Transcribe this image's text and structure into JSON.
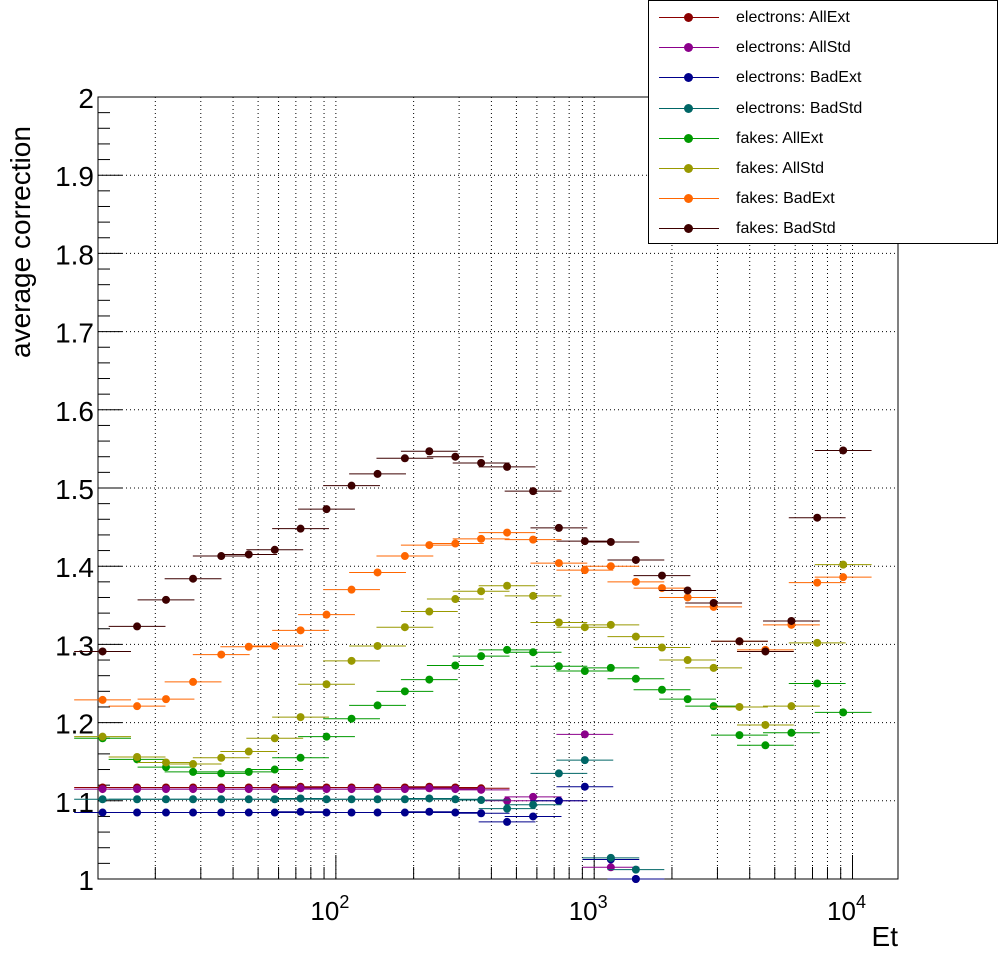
{
  "chart_data": {
    "type": "scatter",
    "xlabel": "Et",
    "ylabel": "average correction",
    "xscale": "log",
    "xlim": [
      12,
      15000
    ],
    "ylim": [
      1.0,
      2.0
    ],
    "grid": true,
    "legend_position": "top-right",
    "x_tick_labels": [
      "10^2",
      "10^3",
      "10^4"
    ],
    "y_tick_labels": [
      "1",
      "1.1",
      "1.2",
      "1.3",
      "1.4",
      "1.5",
      "1.6",
      "1.7",
      "1.8",
      "1.9",
      "2"
    ],
    "series": [
      {
        "name": "electrons: AllExt",
        "color": "#8b0000",
        "points": [
          [
            12.5,
            1.117
          ],
          [
            17,
            1.117
          ],
          [
            22,
            1.117
          ],
          [
            28,
            1.117
          ],
          [
            36,
            1.117
          ],
          [
            46,
            1.117
          ],
          [
            58,
            1.117
          ],
          [
            73,
            1.118
          ],
          [
            92,
            1.117
          ],
          [
            115,
            1.117
          ],
          [
            145,
            1.117
          ],
          [
            185,
            1.117
          ],
          [
            230,
            1.118
          ],
          [
            290,
            1.117
          ],
          [
            365,
            1.116
          ]
        ]
      },
      {
        "name": "electrons: AllStd",
        "color": "#8b008b",
        "points": [
          [
            12.5,
            1.115
          ],
          [
            17,
            1.115
          ],
          [
            22,
            1.115
          ],
          [
            28,
            1.115
          ],
          [
            36,
            1.115
          ],
          [
            46,
            1.115
          ],
          [
            58,
            1.115
          ],
          [
            73,
            1.116
          ],
          [
            92,
            1.115
          ],
          [
            115,
            1.115
          ],
          [
            145,
            1.115
          ],
          [
            185,
            1.115
          ],
          [
            230,
            1.116
          ],
          [
            290,
            1.115
          ],
          [
            365,
            1.114
          ],
          [
            460,
            1.1
          ],
          [
            580,
            1.105
          ],
          [
            730,
            1.1
          ],
          [
            920,
            1.185
          ],
          [
            1160,
            1.015
          ],
          [
            1450,
            1.0
          ]
        ]
      },
      {
        "name": "electrons: BadExt",
        "color": "#00008b",
        "points": [
          [
            12.5,
            1.085
          ],
          [
            17,
            1.085
          ],
          [
            22,
            1.085
          ],
          [
            28,
            1.085
          ],
          [
            36,
            1.085
          ],
          [
            46,
            1.085
          ],
          [
            58,
            1.085
          ],
          [
            73,
            1.086
          ],
          [
            92,
            1.085
          ],
          [
            115,
            1.085
          ],
          [
            145,
            1.085
          ],
          [
            185,
            1.085
          ],
          [
            230,
            1.086
          ],
          [
            290,
            1.085
          ],
          [
            365,
            1.084
          ],
          [
            460,
            1.073
          ],
          [
            580,
            1.08
          ],
          [
            730,
            1.1
          ],
          [
            920,
            1.118
          ],
          [
            1160,
            1.025
          ],
          [
            1450,
            1.0
          ]
        ]
      },
      {
        "name": "electrons: BadStd",
        "color": "#006666",
        "points": [
          [
            12.5,
            1.102
          ],
          [
            17,
            1.102
          ],
          [
            22,
            1.102
          ],
          [
            28,
            1.102
          ],
          [
            36,
            1.102
          ],
          [
            46,
            1.102
          ],
          [
            58,
            1.102
          ],
          [
            73,
            1.103
          ],
          [
            92,
            1.102
          ],
          [
            115,
            1.102
          ],
          [
            145,
            1.102
          ],
          [
            185,
            1.102
          ],
          [
            230,
            1.103
          ],
          [
            290,
            1.102
          ],
          [
            365,
            1.101
          ],
          [
            460,
            1.09
          ],
          [
            580,
            1.095
          ],
          [
            730,
            1.135
          ],
          [
            920,
            1.152
          ],
          [
            1160,
            1.027
          ],
          [
            1450,
            1.012
          ]
        ]
      },
      {
        "name": "fakes: AllExt",
        "color": "#009900",
        "points": [
          [
            12.5,
            1.18
          ],
          [
            17,
            1.153
          ],
          [
            22,
            1.143
          ],
          [
            28,
            1.137
          ],
          [
            36,
            1.135
          ],
          [
            46,
            1.137
          ],
          [
            58,
            1.14
          ],
          [
            73,
            1.155
          ],
          [
            92,
            1.182
          ],
          [
            115,
            1.205
          ],
          [
            145,
            1.222
          ],
          [
            185,
            1.24
          ],
          [
            230,
            1.255
          ],
          [
            290,
            1.273
          ],
          [
            365,
            1.285
          ],
          [
            460,
            1.293
          ],
          [
            580,
            1.29
          ],
          [
            730,
            1.272
          ],
          [
            920,
            1.266
          ],
          [
            1160,
            1.27
          ],
          [
            1450,
            1.256
          ],
          [
            1830,
            1.242
          ],
          [
            2300,
            1.23
          ],
          [
            2900,
            1.221
          ],
          [
            3650,
            1.184
          ],
          [
            4600,
            1.171
          ],
          [
            5800,
            1.187
          ],
          [
            7300,
            1.25
          ],
          [
            9200,
            1.213
          ]
        ]
      },
      {
        "name": "fakes: AllStd",
        "color": "#999900",
        "points": [
          [
            12.5,
            1.182
          ],
          [
            17,
            1.156
          ],
          [
            22,
            1.149
          ],
          [
            28,
            1.147
          ],
          [
            36,
            1.155
          ],
          [
            46,
            1.163
          ],
          [
            58,
            1.18
          ],
          [
            73,
            1.207
          ],
          [
            92,
            1.249
          ],
          [
            115,
            1.279
          ],
          [
            145,
            1.298
          ],
          [
            185,
            1.322
          ],
          [
            230,
            1.342
          ],
          [
            290,
            1.358
          ],
          [
            365,
            1.368
          ],
          [
            460,
            1.375
          ],
          [
            580,
            1.362
          ],
          [
            730,
            1.328
          ],
          [
            920,
            1.322
          ],
          [
            1160,
            1.325
          ],
          [
            1450,
            1.31
          ],
          [
            1830,
            1.296
          ],
          [
            2300,
            1.28
          ],
          [
            2900,
            1.27
          ],
          [
            3650,
            1.22
          ],
          [
            4600,
            1.197
          ],
          [
            5800,
            1.221
          ],
          [
            7300,
            1.302
          ],
          [
            9200,
            1.402
          ]
        ]
      },
      {
        "name": "fakes: BadExt",
        "color": "#ff6600",
        "points": [
          [
            12.5,
            1.229
          ],
          [
            17,
            1.221
          ],
          [
            22,
            1.23
          ],
          [
            28,
            1.252
          ],
          [
            36,
            1.287
          ],
          [
            46,
            1.297
          ],
          [
            58,
            1.298
          ],
          [
            73,
            1.318
          ],
          [
            92,
            1.338
          ],
          [
            115,
            1.37
          ],
          [
            145,
            1.392
          ],
          [
            185,
            1.413
          ],
          [
            230,
            1.427
          ],
          [
            290,
            1.429
          ],
          [
            365,
            1.435
          ],
          [
            460,
            1.443
          ],
          [
            580,
            1.434
          ],
          [
            730,
            1.404
          ],
          [
            920,
            1.395
          ],
          [
            1160,
            1.4
          ],
          [
            1450,
            1.38
          ],
          [
            1830,
            1.372
          ],
          [
            2300,
            1.36
          ],
          [
            2900,
            1.348
          ],
          [
            3650,
            1.304
          ],
          [
            4600,
            1.293
          ],
          [
            5800,
            1.325
          ],
          [
            7300,
            1.379
          ],
          [
            9200,
            1.386
          ]
        ]
      },
      {
        "name": "fakes: BadStd",
        "color": "#3d0000",
        "points": [
          [
            12.5,
            1.291
          ],
          [
            17,
            1.323
          ],
          [
            22,
            1.357
          ],
          [
            28,
            1.384
          ],
          [
            36,
            1.413
          ],
          [
            46,
            1.415
          ],
          [
            58,
            1.421
          ],
          [
            73,
            1.448
          ],
          [
            92,
            1.473
          ],
          [
            115,
            1.503
          ],
          [
            145,
            1.518
          ],
          [
            185,
            1.538
          ],
          [
            230,
            1.547
          ],
          [
            290,
            1.54
          ],
          [
            365,
            1.532
          ],
          [
            460,
            1.527
          ],
          [
            580,
            1.496
          ],
          [
            730,
            1.449
          ],
          [
            920,
            1.432
          ],
          [
            1160,
            1.431
          ],
          [
            1450,
            1.408
          ],
          [
            1830,
            1.388
          ],
          [
            2300,
            1.369
          ],
          [
            2900,
            1.353
          ],
          [
            3650,
            1.304
          ],
          [
            4600,
            1.291
          ],
          [
            5800,
            1.33
          ],
          [
            7300,
            1.462
          ],
          [
            9200,
            1.548
          ]
        ]
      }
    ]
  }
}
